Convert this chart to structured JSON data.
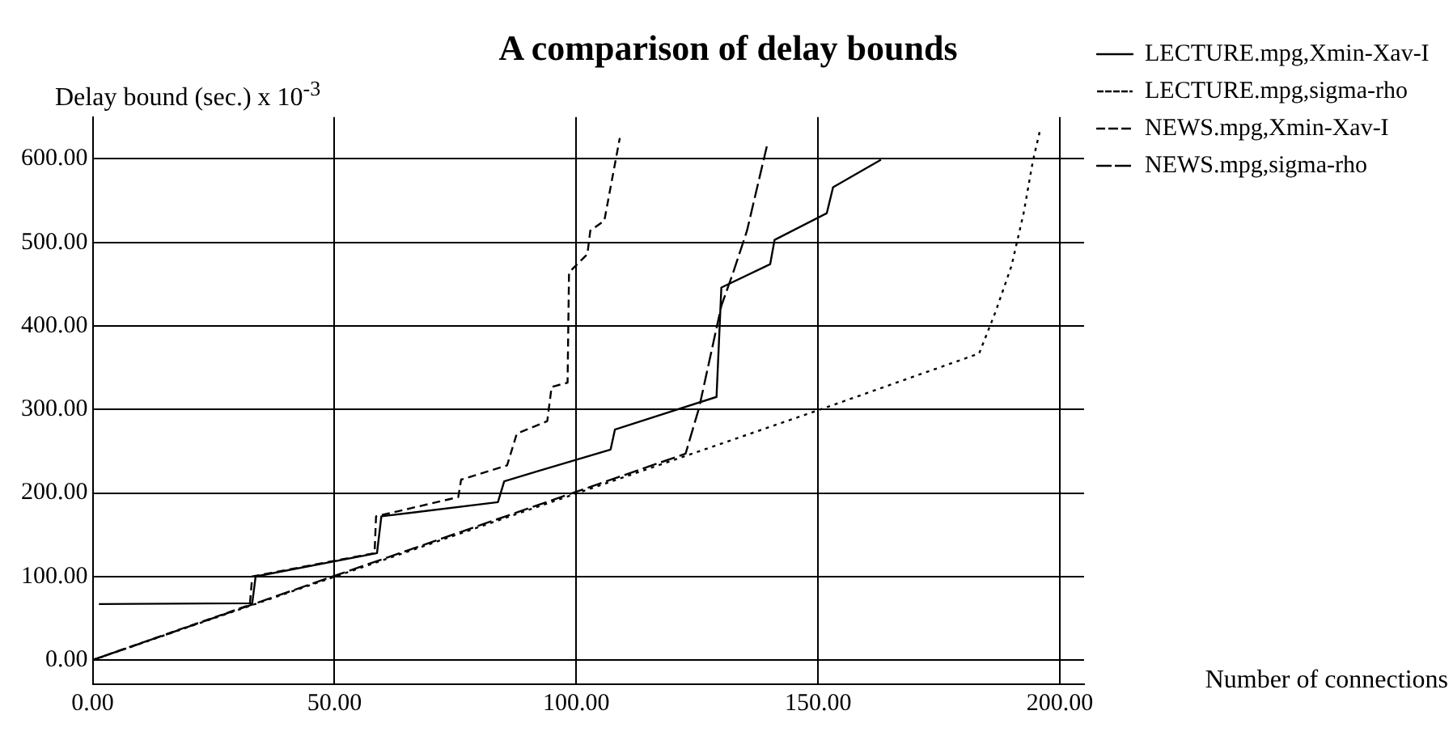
{
  "chart_data": {
    "type": "line",
    "title": "A comparison of delay bounds",
    "ylabel": "Delay bound (sec.) x 10$^{-3}$",
    "xlabel": "Number of connections",
    "xlim": [
      0,
      205
    ],
    "ylim": [
      -29,
      650
    ],
    "xticks": [
      {
        "value": 0,
        "label": "0.00"
      },
      {
        "value": 50,
        "label": "50.00"
      },
      {
        "value": 100,
        "label": "100.00"
      },
      {
        "value": 150,
        "label": "150.00"
      },
      {
        "value": 200,
        "label": "200.00"
      }
    ],
    "yticks": [
      {
        "value": 0,
        "label": "0.00"
      },
      {
        "value": 100,
        "label": "100.00"
      },
      {
        "value": 200,
        "label": "200.00"
      },
      {
        "value": 300,
        "label": "300.00"
      },
      {
        "value": 400,
        "label": "400.00"
      },
      {
        "value": 500,
        "label": "500.00"
      },
      {
        "value": 600,
        "label": "600.00"
      }
    ],
    "grid": true,
    "legend": "right",
    "marker": "none",
    "series": [
      {
        "name": "LECTURE.mpg,Xmin-Xav-I",
        "color": "#000000",
        "line_style": "solid",
        "x": [
          1.3,
          33,
          33.7,
          58.8,
          59.7,
          83.8,
          85.1,
          92,
          107.1,
          108,
          129,
          130,
          140.1,
          141,
          151.8,
          153.1,
          163
        ],
        "values": [
          67,
          68,
          100,
          128,
          172,
          189,
          214,
          226,
          252,
          276,
          315,
          446,
          474,
          503,
          535,
          566,
          599
        ]
      },
      {
        "name": "LECTURE.mpg,sigma-rho",
        "color": "#000000",
        "line_style": "dotted",
        "x": [
          0,
          150,
          183.3,
          186.7,
          190,
          192.5,
          194.4,
          196
        ],
        "values": [
          0,
          299,
          367,
          417,
          472,
          535,
          597,
          637
        ]
      },
      {
        "name": "NEWS.mpg,Xmin-Xav-I",
        "color": "#000000",
        "line_style": "dashed",
        "x": [
          0,
          32.5,
          33,
          58.3,
          58.6,
          75.6,
          76.2,
          85.7,
          87.7,
          94,
          94.9,
          98.2,
          98.5,
          102.3,
          102.9,
          105.8,
          109
        ],
        "values": [
          0,
          66,
          100,
          128,
          172,
          195,
          216,
          233,
          271,
          286,
          327,
          332,
          464,
          486,
          514,
          526,
          625
        ]
      },
      {
        "name": "NEWS.mpg,sigma-rho",
        "color": "#000000",
        "line_style": "dashed",
        "x": [
          0,
          122.6,
          125.4,
          130,
          132.5,
          135.3,
          139.4
        ],
        "values": [
          0,
          247,
          302,
          424,
          465,
          514,
          615
        ]
      }
    ]
  }
}
